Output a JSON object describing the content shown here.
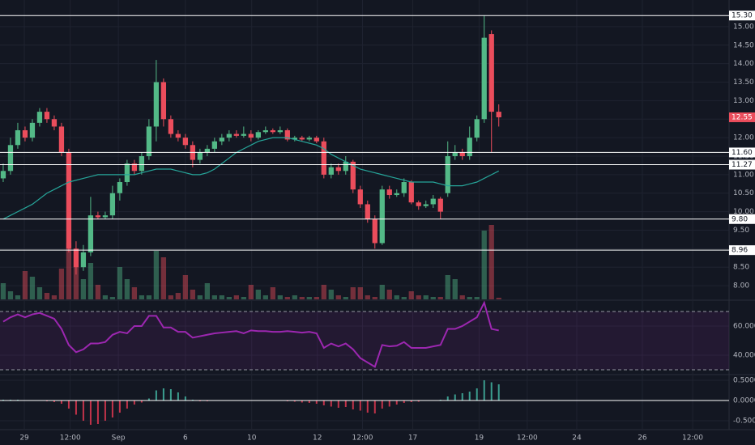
{
  "chart_data": [
    {
      "type": "candlestick",
      "open": [
        10.9,
        11.1,
        11.8,
        12.2,
        12.0,
        12.4,
        12.7,
        12.5,
        12.3,
        11.6,
        9.0,
        8.5,
        8.9,
        9.9,
        9.85,
        9.9,
        10.5,
        10.8,
        11.3,
        11.1,
        11.5,
        12.3,
        13.5,
        12.5,
        12.1,
        12.0,
        11.8,
        11.4,
        11.6,
        11.7,
        11.9,
        12.0,
        12.1,
        12.05,
        12.1,
        12.0,
        12.15,
        12.2,
        12.15,
        12.2,
        11.95,
        12.0,
        11.95,
        12.0,
        11.9,
        11.0,
        11.2,
        11.1,
        11.35,
        10.6,
        10.2,
        9.8,
        9.15,
        10.6,
        10.45,
        10.5,
        10.8,
        10.25,
        10.15,
        10.2,
        10.35,
        10.5,
        11.5,
        11.6,
        11.5,
        12.0,
        12.5,
        14.8,
        12.7
      ],
      "high": [
        11.3,
        12.0,
        12.4,
        12.3,
        12.5,
        12.8,
        12.8,
        12.6,
        12.4,
        11.7,
        9.2,
        9.1,
        10.4,
        10.0,
        10.0,
        10.7,
        10.9,
        11.4,
        11.4,
        11.6,
        12.5,
        14.1,
        13.6,
        12.6,
        12.2,
        12.1,
        11.9,
        11.7,
        11.8,
        12.0,
        12.1,
        12.2,
        12.2,
        12.3,
        12.2,
        12.2,
        12.3,
        12.25,
        12.3,
        12.25,
        12.05,
        12.05,
        12.05,
        12.05,
        12.0,
        11.3,
        11.3,
        11.5,
        11.4,
        10.7,
        10.3,
        9.9,
        10.7,
        10.7,
        10.6,
        10.9,
        10.85,
        10.3,
        10.3,
        10.45,
        10.4,
        11.9,
        11.8,
        11.7,
        12.3,
        12.6,
        15.3,
        14.9,
        12.9
      ],
      "low": [
        10.8,
        11.0,
        11.7,
        11.9,
        11.9,
        12.3,
        12.4,
        12.2,
        11.5,
        8.9,
        8.3,
        8.4,
        8.8,
        9.8,
        9.8,
        9.8,
        10.3,
        10.7,
        11.0,
        11.0,
        11.4,
        11.9,
        12.3,
        12.0,
        11.9,
        11.7,
        11.2,
        11.3,
        11.5,
        11.6,
        11.8,
        11.9,
        12.0,
        12.0,
        11.9,
        11.95,
        12.1,
        12.1,
        12.1,
        11.9,
        11.9,
        11.9,
        11.9,
        11.85,
        10.9,
        10.9,
        11.0,
        11.0,
        10.5,
        10.1,
        9.7,
        9.0,
        9.1,
        10.35,
        10.4,
        10.4,
        10.2,
        10.05,
        10.1,
        10.1,
        9.8,
        10.4,
        11.4,
        11.4,
        11.4,
        11.9,
        12.4,
        11.6,
        12.3
      ],
      "close": [
        11.1,
        11.8,
        12.2,
        12.0,
        12.4,
        12.7,
        12.5,
        12.3,
        11.6,
        9.0,
        8.5,
        8.9,
        9.9,
        9.85,
        9.9,
        10.5,
        10.8,
        11.3,
        11.1,
        11.5,
        12.3,
        13.5,
        12.5,
        12.1,
        12.0,
        11.8,
        11.4,
        11.6,
        11.7,
        11.9,
        12.0,
        12.1,
        12.05,
        12.1,
        12.0,
        12.15,
        12.2,
        12.15,
        12.2,
        11.95,
        12.0,
        11.95,
        12.0,
        11.9,
        11.0,
        11.2,
        11.1,
        11.35,
        10.6,
        10.2,
        9.8,
        9.15,
        10.6,
        10.45,
        10.5,
        10.8,
        10.25,
        10.15,
        10.2,
        10.35,
        10.0,
        11.5,
        11.6,
        11.5,
        12.0,
        12.5,
        14.7,
        12.7,
        12.55
      ],
      "volume": [
        20,
        10,
        5,
        35,
        28,
        15,
        8,
        5,
        38,
        70,
        40,
        25,
        45,
        18,
        5,
        3,
        40,
        25,
        15,
        5,
        5,
        60,
        52,
        5,
        8,
        30,
        12,
        5,
        20,
        5,
        5,
        3,
        5,
        3,
        18,
        12,
        5,
        15,
        5,
        3,
        5,
        3,
        3,
        3,
        18,
        12,
        5,
        3,
        15,
        15,
        5,
        3,
        18,
        12,
        5,
        3,
        10,
        5,
        5,
        3,
        3,
        30,
        25,
        5,
        3,
        3,
        85,
        92,
        2
      ],
      "volume_lim": [
        0,
        100
      ],
      "ma": {
        "color": "#26a69a",
        "values": [
          9.8,
          9.9,
          10.0,
          10.1,
          10.2,
          10.35,
          10.5,
          10.6,
          10.7,
          10.8,
          10.85,
          10.9,
          10.95,
          11.0,
          11.0,
          11.0,
          11.0,
          11.0,
          11.0,
          11.05,
          11.1,
          11.15,
          11.15,
          11.15,
          11.1,
          11.05,
          11.0,
          11.0,
          11.05,
          11.15,
          11.3,
          11.45,
          11.6,
          11.7,
          11.8,
          11.9,
          11.95,
          12.0,
          12.0,
          12.0,
          11.95,
          11.9,
          11.85,
          11.8,
          11.7,
          11.55,
          11.45,
          11.35,
          11.25,
          11.15,
          11.1,
          11.05,
          11.0,
          10.95,
          10.9,
          10.85,
          10.8,
          10.8,
          10.8,
          10.8,
          10.75,
          10.7,
          10.7,
          10.7,
          10.75,
          10.8,
          10.9,
          11.0,
          11.1
        ]
      },
      "up_color": "#53b987",
      "down_color": "#eb4d5c",
      "levels": [
        {
          "value": 15.3,
          "label": "15.30"
        },
        {
          "value": 11.6,
          "label": "11.60"
        },
        {
          "value": 11.27,
          "label": "11.27"
        },
        {
          "value": 9.8,
          "label": "9.80"
        },
        {
          "value": 8.96,
          "label": "8.96"
        }
      ],
      "last_price": {
        "value": 12.55,
        "label": "12.55"
      },
      "ylim": [
        7.63,
        15.72
      ],
      "yticks": [
        {
          "value": 8,
          "label": "8.00"
        },
        {
          "value": 8.5,
          "label": "8.50"
        },
        {
          "value": 9,
          "label": "9.00"
        },
        {
          "value": 9.5,
          "label": "9.50"
        },
        {
          "value": 10,
          "label": "10.00"
        },
        {
          "value": 10.5,
          "label": "10.50"
        },
        {
          "value": 11,
          "label": "11.00"
        },
        {
          "value": 11.5,
          "label": "11.50"
        },
        {
          "value": 12,
          "label": "12.00"
        },
        {
          "value": 12.5,
          "label": "12.50"
        },
        {
          "value": 13,
          "label": "13.00"
        },
        {
          "value": 13.5,
          "label": "13.50"
        },
        {
          "value": 14,
          "label": "14.00"
        },
        {
          "value": 14.5,
          "label": "14.50"
        },
        {
          "value": 15,
          "label": "15.00"
        }
      ]
    },
    {
      "type": "line",
      "color": "#9c27b0",
      "values": [
        63,
        66,
        68,
        66,
        68,
        69,
        67,
        65,
        58,
        47,
        42,
        44,
        48,
        48,
        49,
        54,
        56,
        55,
        60,
        60,
        67,
        67,
        59,
        59,
        56,
        56,
        52,
        53,
        54,
        55,
        55.5,
        56,
        56.5,
        55,
        57,
        56.5,
        56.5,
        56,
        56,
        56.5,
        56,
        55.5,
        56,
        55,
        45,
        48,
        46,
        48,
        44,
        38,
        35,
        32,
        47,
        46,
        46.5,
        49,
        45,
        45,
        45,
        46,
        47,
        58,
        58,
        60,
        63,
        66,
        76,
        58,
        57
      ],
      "bands": [
        70,
        30
      ],
      "ylim": [
        27.2,
        77.2
      ],
      "yticks": [
        {
          "value": 40,
          "label": "40.0000"
        },
        {
          "value": 60,
          "label": "60.0000"
        }
      ]
    },
    {
      "type": "histogram",
      "pos_color": "#3b9e8f",
      "neg_color": "#c2334a",
      "values": [
        0.02,
        0.02,
        0.02,
        0.01,
        0.01,
        0,
        -0.02,
        -0.04,
        -0.08,
        -0.2,
        -0.35,
        -0.5,
        -0.6,
        -0.58,
        -0.5,
        -0.42,
        -0.3,
        -0.2,
        -0.1,
        -0.05,
        0.05,
        0.25,
        0.3,
        0.28,
        0.2,
        0.1,
        0.02,
        -0.02,
        -0.02,
        -0.01,
        0,
        0.01,
        0.01,
        0.01,
        0,
        0,
        -0.01,
        0,
        -0.01,
        -0.02,
        -0.03,
        -0.05,
        -0.06,
        -0.08,
        -0.12,
        -0.15,
        -0.18,
        -0.16,
        -0.22,
        -0.25,
        -0.3,
        -0.32,
        -0.2,
        -0.15,
        -0.1,
        -0.06,
        -0.04,
        -0.03,
        -0.01,
        0,
        0.02,
        0.1,
        0.15,
        0.18,
        0.22,
        0.3,
        0.5,
        0.45,
        0.4
      ],
      "ylim": [
        -0.7,
        0.62
      ],
      "yticks": [
        {
          "value": -0.5,
          "label": "-0.5000"
        },
        {
          "value": 0,
          "label": "0.0000"
        },
        {
          "value": 0.5,
          "label": "0.5000"
        }
      ],
      "xlim": [
        -0.44,
        99.6
      ],
      "xticks": [
        {
          "value": 2.9,
          "label": "29"
        },
        {
          "value": 9.2,
          "label": "12:00"
        },
        {
          "value": 15.8,
          "label": "Sep"
        },
        {
          "value": 25,
          "label": "6"
        },
        {
          "value": 34.1,
          "label": "10"
        },
        {
          "value": 43.1,
          "label": "12"
        },
        {
          "value": 49.3,
          "label": "12:00"
        },
        {
          "value": 56.2,
          "label": "17"
        },
        {
          "value": 65.3,
          "label": "19"
        },
        {
          "value": 71.9,
          "label": "12:00"
        },
        {
          "value": 78.7,
          "label": "24"
        },
        {
          "value": 87.7,
          "label": "26"
        },
        {
          "value": 94.6,
          "label": "12:00"
        }
      ]
    }
  ]
}
